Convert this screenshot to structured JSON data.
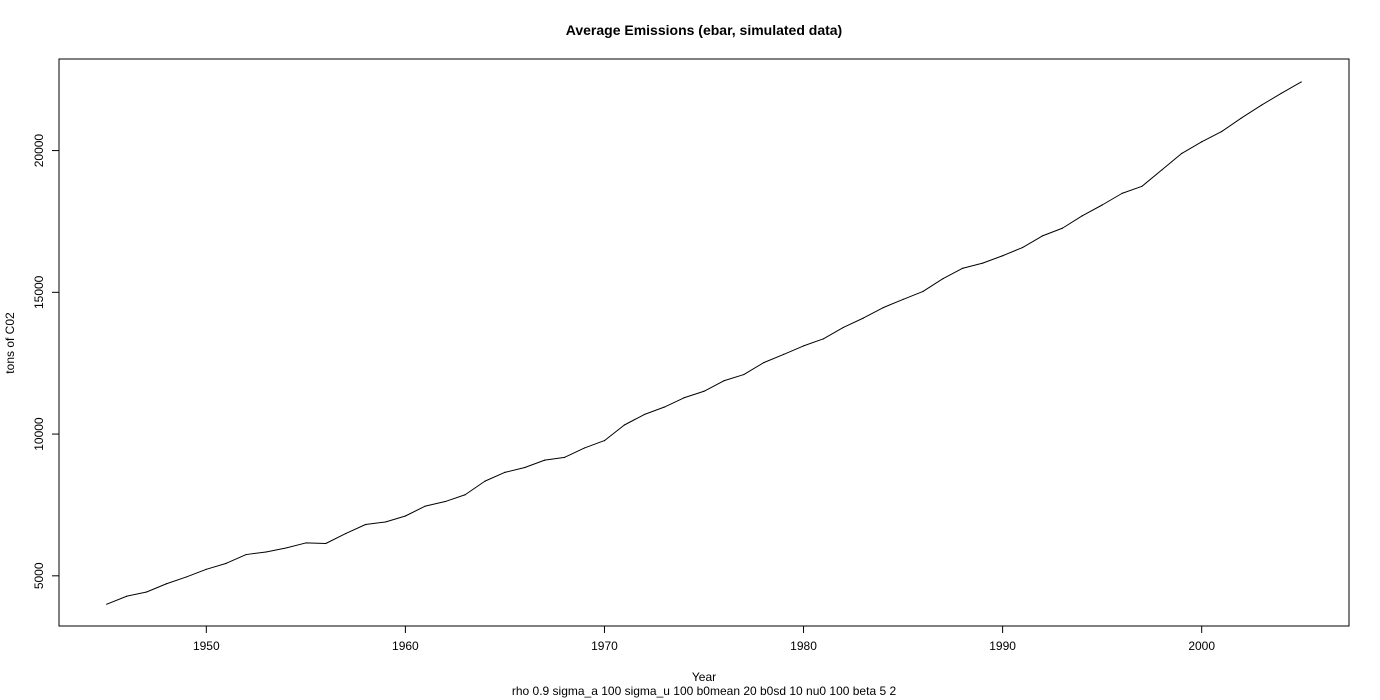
{
  "chart_data": {
    "type": "line",
    "title": "Average Emissions (ebar, simulated data)",
    "xlabel": "Year",
    "ylabel": "tons of C02",
    "subtitle": "rho 0.9 sigma_a 100 sigma_u 100 b0mean 20 b0sd 10 nu0 100 beta 5 2",
    "xlim": [
      1942.6,
      2007.4
    ],
    "ylim": [
      3230,
      23230
    ],
    "xticks": [
      1950,
      1960,
      1970,
      1980,
      1990,
      2000
    ],
    "yticks": [
      5000,
      10000,
      15000,
      20000
    ],
    "grid": false,
    "legend": "none",
    "line_color": "#000000",
    "series": [
      {
        "x": [
          1945,
          1946,
          1947,
          1948,
          1949,
          1950,
          1951,
          1952,
          1953,
          1954,
          1955,
          1956,
          1957,
          1958,
          1959,
          1960,
          1961,
          1962,
          1963,
          1964,
          1965,
          1966,
          1967,
          1968,
          1969,
          1970,
          1971,
          1972,
          1973,
          1974,
          1975,
          1976,
          1977,
          1978,
          1979,
          1980,
          1981,
          1982,
          1983,
          1984,
          1985,
          1986,
          1987,
          1988,
          1989,
          1990,
          1991,
          1992,
          1993,
          1994,
          1995,
          1996,
          1997,
          1998,
          1999,
          2000,
          2001,
          2002,
          2003,
          2004,
          2005
        ],
        "values": [
          4000,
          4280,
          4430,
          4720,
          4960,
          5230,
          5440,
          5750,
          5840,
          5980,
          6160,
          6140,
          6490,
          6810,
          6900,
          7110,
          7460,
          7620,
          7860,
          8340,
          8650,
          8820,
          9080,
          9180,
          9510,
          9770,
          10320,
          10690,
          10950,
          11280,
          11510,
          11880,
          12100,
          12520,
          12810,
          13110,
          13360,
          13760,
          14090,
          14460,
          14750,
          15030,
          15480,
          15850,
          16030,
          16290,
          16580,
          16990,
          17260,
          17700,
          18080,
          18490,
          18740,
          19320,
          19900,
          20310,
          20670,
          21150,
          21600,
          22020,
          22420
        ]
      }
    ]
  }
}
